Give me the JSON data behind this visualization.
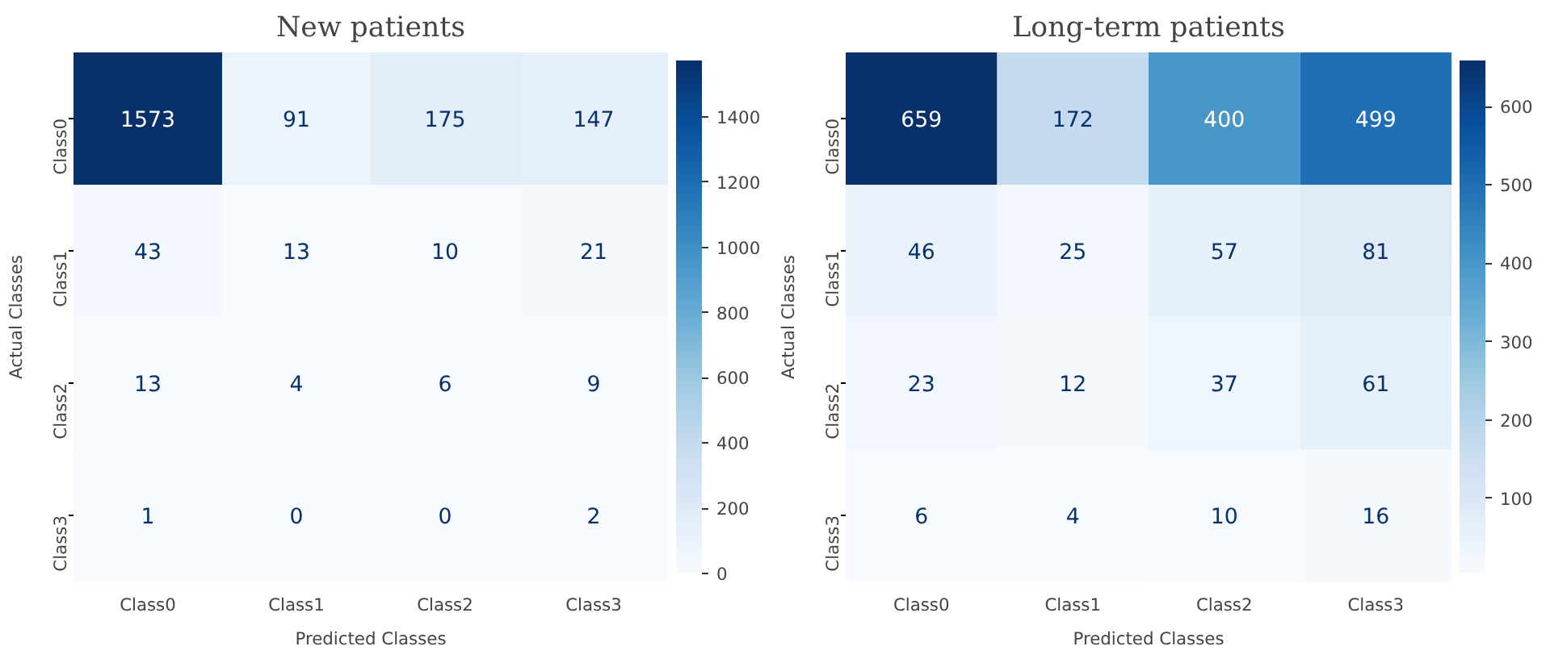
{
  "chart_data": [
    {
      "type": "heatmap",
      "title": "New patients",
      "xlabel": "Predicted Classes",
      "ylabel": "Actual Classes",
      "categories": [
        "Class0",
        "Class1",
        "Class2",
        "Class3"
      ],
      "y_categories": [
        "Class0",
        "Class1",
        "Class2",
        "Class3"
      ],
      "cells": [
        [
          1573,
          91,
          175,
          147
        ],
        [
          43,
          13,
          10,
          21
        ],
        [
          13,
          4,
          6,
          9
        ],
        [
          1,
          0,
          0,
          2
        ]
      ],
      "clim": [
        0,
        1573
      ],
      "cticks": [
        0,
        200,
        400,
        600,
        800,
        1000,
        1200,
        1400
      ],
      "data_labels": true
    },
    {
      "type": "heatmap",
      "title": "Long-term patients",
      "xlabel": "Predicted Classes",
      "ylabel": "Actual Classes",
      "categories": [
        "Class0",
        "Class1",
        "Class2",
        "Class3"
      ],
      "y_categories": [
        "Class0",
        "Class1",
        "Class2",
        "Class3"
      ],
      "cells": [
        [
          659,
          172,
          400,
          499
        ],
        [
          46,
          25,
          57,
          81
        ],
        [
          23,
          12,
          37,
          61
        ],
        [
          6,
          4,
          10,
          16
        ]
      ],
      "clim": [
        4,
        659
      ],
      "cticks": [
        100,
        200,
        300,
        400,
        500,
        600
      ],
      "data_labels": true
    }
  ]
}
